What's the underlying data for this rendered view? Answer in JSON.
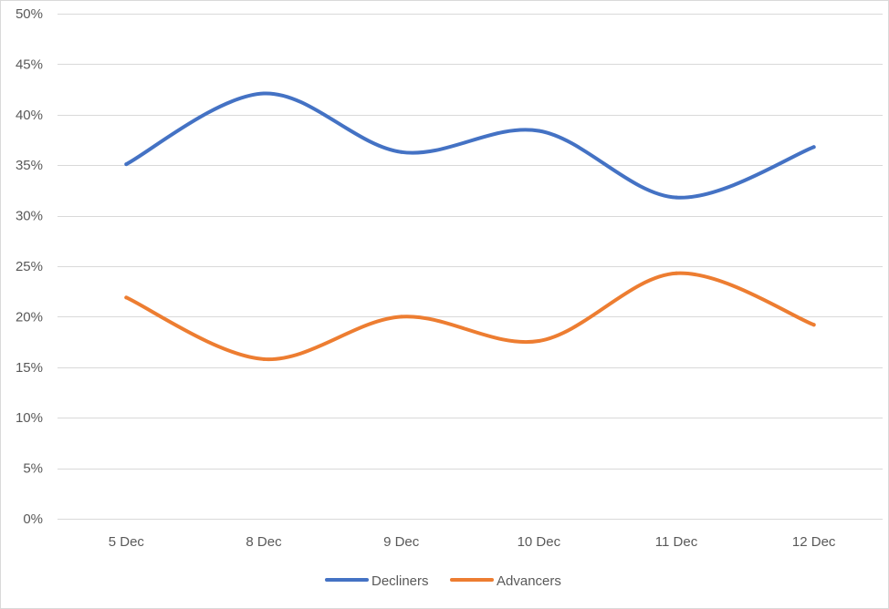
{
  "chart_data": {
    "type": "line",
    "smooth": true,
    "categories": [
      "5 Dec",
      "8 Dec",
      "9 Dec",
      "10 Dec",
      "11 Dec",
      "12 Dec"
    ],
    "series": [
      {
        "name": "Decliners",
        "values": [
          35.1,
          42.1,
          36.3,
          38.4,
          31.8,
          36.8
        ],
        "color": "#4472c4"
      },
      {
        "name": "Advancers",
        "values": [
          21.9,
          15.8,
          20.0,
          17.6,
          24.3,
          19.2
        ],
        "color": "#ed7d31"
      }
    ],
    "ylim": [
      0,
      50
    ],
    "yticks": [
      0,
      5,
      10,
      15,
      20,
      25,
      30,
      35,
      40,
      45,
      50
    ],
    "ytick_format": "percent",
    "grid": true,
    "legend_position": "bottom",
    "title": "",
    "xlabel": "",
    "ylabel": ""
  }
}
